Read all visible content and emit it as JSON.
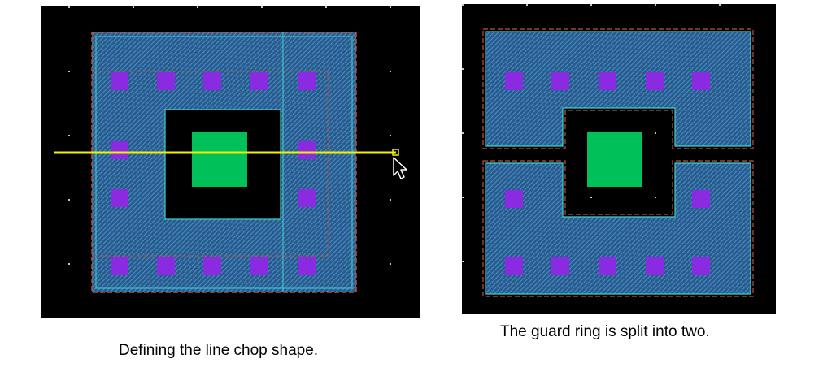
{
  "panels": [
    {
      "id": "left",
      "caption": "Defining the line chop shape."
    },
    {
      "id": "right",
      "caption": "The guard ring is split into two."
    }
  ],
  "colors": {
    "canvas": "#000000",
    "grid_dot": "#c8c8c8",
    "ring_fill": "#3a6fa6",
    "ring_edge_cyan": "#3fd0c8",
    "ring_edge_red": "#c0503c",
    "contact": "#8a2be2",
    "center_block": "#00c05a",
    "chop_line": "#f0f000",
    "cursor": "#ffffff"
  },
  "icons": {
    "cursor": "mouse-pointer-icon"
  }
}
